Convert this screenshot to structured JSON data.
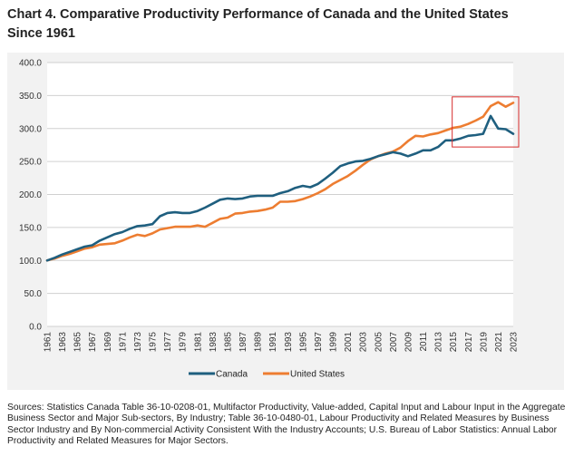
{
  "title_line1": "Chart 4. Comparative Productivity Performance of Canada and the United States",
  "title_line2": "Since 1961",
  "source": "Sources: Statistics Canada Table 36-10-0208-01, Multifactor Productivity, Value-added, Capital Input and Labour Input in the Aggregate Business Sector and Major Sub-sectors, By Industry; Table 36-10-0480-01, Labour Productivity and Related Measures by Business Sector Industry and By Non-commercial Activity Consistent With the Industry Accounts; U.S. Bureau of Labor Statistics: Annual Labor Productivity and Related Measures for Major Sectors.",
  "colors": {
    "canada": "#1f5f7f",
    "us": "#ed7d31",
    "highlight": "#d62b2b",
    "grid": "#d0d0d0",
    "panel": "#f2f2f2"
  },
  "chart_data": {
    "type": "line",
    "title": "Chart 4. Comparative Productivity Performance of Canada and the United States Since 1961",
    "xlabel": "",
    "ylabel": "",
    "ylim": [
      0,
      400
    ],
    "yticks": [
      "0.0",
      "50.0",
      "100.0",
      "150.0",
      "200.0",
      "250.0",
      "300.0",
      "350.0",
      "400.0"
    ],
    "xticks": [
      "1961",
      "1963",
      "1965",
      "1967",
      "1969",
      "1971",
      "1973",
      "1975",
      "1977",
      "1979",
      "1981",
      "1983",
      "1985",
      "1987",
      "1989",
      "1991",
      "1993",
      "1995",
      "1997",
      "1999",
      "2001",
      "2003",
      "2005",
      "2007",
      "2009",
      "2011",
      "2013",
      "2015",
      "2017",
      "2019",
      "2021",
      "2023"
    ],
    "grid": true,
    "legend": "bottom",
    "x": [
      1961,
      1962,
      1963,
      1964,
      1965,
      1966,
      1967,
      1968,
      1969,
      1970,
      1971,
      1972,
      1973,
      1974,
      1975,
      1976,
      1977,
      1978,
      1979,
      1980,
      1981,
      1982,
      1983,
      1984,
      1985,
      1986,
      1987,
      1988,
      1989,
      1990,
      1991,
      1992,
      1993,
      1994,
      1995,
      1996,
      1997,
      1998,
      1999,
      2000,
      2001,
      2002,
      2003,
      2004,
      2005,
      2006,
      2007,
      2008,
      2009,
      2010,
      2011,
      2012,
      2013,
      2014,
      2015,
      2016,
      2017,
      2018,
      2019,
      2020,
      2021,
      2022,
      2023
    ],
    "series": [
      {
        "name": "Canada",
        "values": [
          100,
          104,
          109,
          113,
          117,
          121,
          123,
          130,
          135,
          140,
          143,
          148,
          152,
          153,
          155,
          167,
          172,
          173,
          172,
          172,
          175,
          180,
          186,
          192,
          194,
          193,
          194,
          197,
          198,
          198,
          198,
          202,
          205,
          210,
          213,
          211,
          216,
          224,
          233,
          243,
          247,
          250,
          251,
          254,
          258,
          261,
          264,
          262,
          258,
          262,
          267,
          267,
          272,
          282,
          282,
          285,
          289,
          290,
          292,
          319,
          300,
          299,
          292
        ]
      },
      {
        "name": "United States",
        "values": [
          100,
          103,
          107,
          110,
          114,
          118,
          120,
          124,
          125,
          126,
          130,
          135,
          139,
          137,
          141,
          147,
          149,
          151,
          151,
          151,
          153,
          151,
          157,
          163,
          165,
          171,
          172,
          174,
          175,
          177,
          180,
          189,
          189,
          190,
          193,
          197,
          202,
          208,
          216,
          222,
          228,
          236,
          245,
          253,
          258,
          262,
          265,
          271,
          281,
          289,
          288,
          291,
          293,
          297,
          301,
          303,
          307,
          312,
          318,
          334,
          340,
          333,
          339
        ]
      }
    ],
    "highlight_years": [
      2015,
      2023
    ]
  }
}
